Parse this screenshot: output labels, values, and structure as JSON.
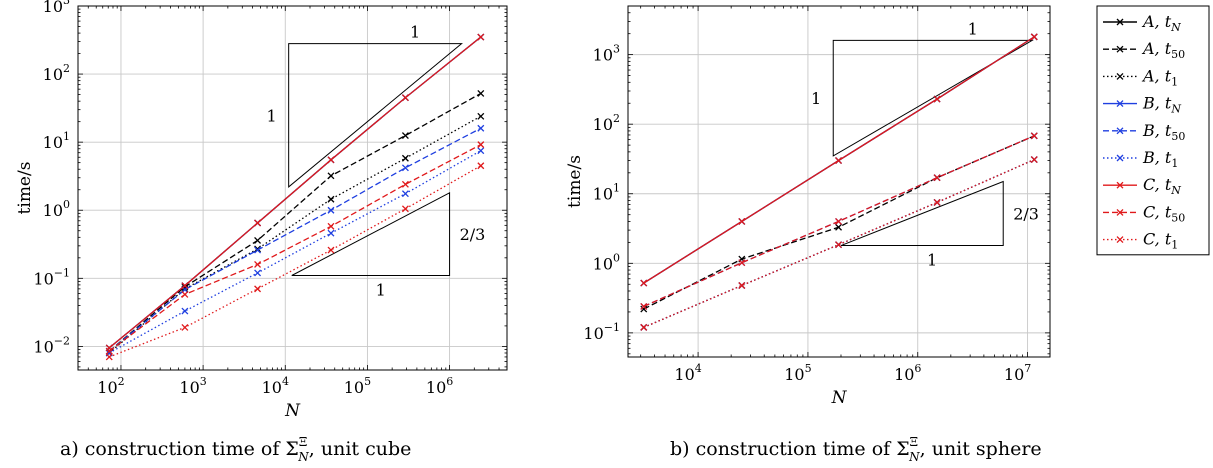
{
  "chart_data": [
    {
      "type": "line",
      "xscale": "log",
      "yscale": "log",
      "xlabel": "N",
      "ylabel": "time/s",
      "xlim": [
        30,
        5000000
      ],
      "ylim": [
        0.0045,
        1000
      ],
      "xticks": [
        {
          "v": 100,
          "b": "10",
          "e": "2"
        },
        {
          "v": 1000,
          "b": "10",
          "e": "3"
        },
        {
          "v": 10000,
          "b": "10",
          "e": "4"
        },
        {
          "v": 100000,
          "b": "10",
          "e": "5"
        },
        {
          "v": 1000000,
          "b": "10",
          "e": "6"
        }
      ],
      "yticks": [
        {
          "v": 0.01,
          "b": "10",
          "e": "−2"
        },
        {
          "v": 0.1,
          "b": "10",
          "e": "−1"
        },
        {
          "v": 1,
          "b": "10",
          "e": "0"
        },
        {
          "v": 10,
          "b": "10",
          "e": "1"
        },
        {
          "v": 100,
          "b": "10",
          "e": "2"
        },
        {
          "v": 1000,
          "b": "10",
          "e": "3"
        }
      ],
      "x": [
        72,
        600,
        4600,
        36000,
        290000,
        2400000
      ],
      "series": [
        {
          "name": "A, t_N",
          "color": "#000000",
          "dash": "solid",
          "values": [
            0.0095,
            0.078,
            0.65,
            5.5,
            45,
            350
          ]
        },
        {
          "name": "A, t_50",
          "color": "#000000",
          "dash": "dashed",
          "values": [
            0.0085,
            0.075,
            0.36,
            3.2,
            12.5,
            52
          ]
        },
        {
          "name": "A, t_1",
          "color": "#000000",
          "dash": "dotted",
          "values": [
            0.008,
            0.07,
            0.27,
            1.45,
            5.8,
            24
          ]
        },
        {
          "name": "B, t_N",
          "color": "#1f3fe0",
          "dash": "solid",
          "values": [
            0.0095,
            0.078,
            0.65,
            5.5,
            45,
            350
          ]
        },
        {
          "name": "B, t_50",
          "color": "#1f3fe0",
          "dash": "dashed",
          "values": [
            0.0085,
            0.068,
            0.26,
            1.0,
            4.2,
            16
          ]
        },
        {
          "name": "B, t_1",
          "color": "#1f3fe0",
          "dash": "dotted",
          "values": [
            0.008,
            0.033,
            0.12,
            0.46,
            1.75,
            7.5
          ]
        },
        {
          "name": "C, t_N",
          "color": "#e0191b",
          "dash": "solid",
          "values": [
            0.0095,
            0.078,
            0.65,
            5.5,
            45,
            350
          ]
        },
        {
          "name": "C, t_50",
          "color": "#e0191b",
          "dash": "dashed",
          "values": [
            0.0085,
            0.058,
            0.16,
            0.58,
            2.4,
            9.2
          ]
        },
        {
          "name": "C, t_1",
          "color": "#e0191b",
          "dash": "dotted",
          "values": [
            0.007,
            0.019,
            0.07,
            0.26,
            1.05,
            4.5
          ]
        }
      ],
      "slope_triangles": [
        {
          "label": "1",
          "side_label": "1",
          "x0": 11000,
          "x1": 1400000,
          "y_low": 2.2,
          "y_high": 280,
          "orientation": "upper"
        },
        {
          "label": "2/3",
          "side_label": "1",
          "x0": 12000,
          "x1": 1000000,
          "y_low": 0.11,
          "y_high": 1.8,
          "orientation": "lower"
        }
      ],
      "caption_prefix": "a) construction time of ",
      "caption_suffix": ", unit cube"
    },
    {
      "type": "line",
      "xscale": "log",
      "yscale": "log",
      "xlabel": "N",
      "ylabel": "time/s",
      "xlim": [
        2300,
        16000000
      ],
      "ylim": [
        0.045,
        5000
      ],
      "xticks": [
        {
          "v": 10000,
          "b": "10",
          "e": "4"
        },
        {
          "v": 100000,
          "b": "10",
          "e": "5"
        },
        {
          "v": 1000000,
          "b": "10",
          "e": "6"
        },
        {
          "v": 10000000,
          "b": "10",
          "e": "7"
        }
      ],
      "yticks": [
        {
          "v": 0.1,
          "b": "10",
          "e": "−1"
        },
        {
          "v": 1,
          "b": "10",
          "e": "0"
        },
        {
          "v": 10,
          "b": "10",
          "e": "1"
        },
        {
          "v": 100,
          "b": "10",
          "e": "2"
        },
        {
          "v": 1000,
          "b": "10",
          "e": "3"
        }
      ],
      "x": [
        3200,
        25000,
        190000,
        1500000,
        11500000
      ],
      "series": [
        {
          "name": "A, t_N",
          "color": "#000000",
          "dash": "solid",
          "values": [
            0.52,
            4.0,
            30,
            230,
            1800
          ]
        },
        {
          "name": "A, t_50",
          "color": "#000000",
          "dash": "dashed",
          "values": [
            0.22,
            1.15,
            3.3,
            17,
            68
          ]
        },
        {
          "name": "A, t_1",
          "color": "#000000",
          "dash": "dotted",
          "values": [
            0.12,
            0.48,
            1.85,
            7.5,
            31
          ]
        },
        {
          "name": "B, t_N",
          "color": "#1f3fe0",
          "dash": "solid",
          "values": [
            0.52,
            4.0,
            30,
            230,
            1800
          ]
        },
        {
          "name": "B, t_50",
          "color": "#1f3fe0",
          "dash": "dashed",
          "values": [
            0.24,
            1.02,
            4.0,
            17,
            68
          ]
        },
        {
          "name": "B, t_1",
          "color": "#1f3fe0",
          "dash": "dotted",
          "values": [
            0.12,
            0.48,
            1.85,
            7.5,
            31
          ]
        },
        {
          "name": "C, t_N",
          "color": "#e0191b",
          "dash": "solid",
          "values": [
            0.52,
            4.0,
            30,
            230,
            1800
          ]
        },
        {
          "name": "C, t_50",
          "color": "#e0191b",
          "dash": "dashed",
          "values": [
            0.24,
            1.02,
            4.0,
            17,
            68
          ]
        },
        {
          "name": "C, t_1",
          "color": "#e0191b",
          "dash": "dotted",
          "values": [
            0.12,
            0.48,
            1.85,
            7.5,
            31
          ]
        }
      ],
      "slope_triangles": [
        {
          "label": "1",
          "side_label": "1",
          "x0": 170000,
          "x1": 11000000,
          "y_low": 35,
          "y_high": 1600,
          "orientation": "upper"
        },
        {
          "label": "2/3",
          "side_label": "1",
          "x0": 200000,
          "x1": 6000000,
          "y_low": 1.8,
          "y_high": 15,
          "orientation": "lower"
        }
      ],
      "caption_prefix": "b) construction time of ",
      "caption_suffix": ", unit sphere"
    }
  ],
  "legend": {
    "entries": [
      {
        "letter": "A",
        "sub": "N",
        "color": "#000000",
        "dash": "solid"
      },
      {
        "letter": "A",
        "sub": "50",
        "color": "#000000",
        "dash": "dashed"
      },
      {
        "letter": "A",
        "sub": "1",
        "color": "#000000",
        "dash": "dotted"
      },
      {
        "letter": "B",
        "sub": "N",
        "color": "#1f3fe0",
        "dash": "solid"
      },
      {
        "letter": "B",
        "sub": "50",
        "color": "#1f3fe0",
        "dash": "dashed"
      },
      {
        "letter": "B",
        "sub": "1",
        "color": "#1f3fe0",
        "dash": "dotted"
      },
      {
        "letter": "C",
        "sub": "N",
        "color": "#e0191b",
        "dash": "solid"
      },
      {
        "letter": "C",
        "sub": "50",
        "color": "#e0191b",
        "dash": "dashed"
      },
      {
        "letter": "C",
        "sub": "1",
        "color": "#e0191b",
        "dash": "dotted"
      }
    ]
  },
  "caption_symbol": {
    "base": "Σ",
    "sup": "Ξ",
    "sub": "N"
  }
}
